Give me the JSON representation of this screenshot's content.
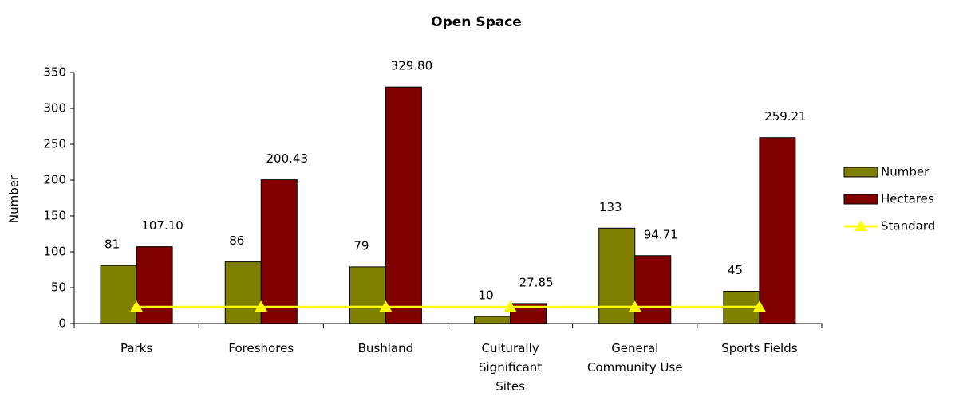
{
  "chart_data": {
    "type": "bar",
    "title": "Open Space",
    "y_label": "Number",
    "categories": [
      "Parks",
      "Foreshores",
      "Bushland",
      "Culturally Significant Sites",
      "General Community Use",
      "Sports Fields"
    ],
    "series": [
      {
        "name": "Number",
        "type": "bar",
        "color": "#808000",
        "values": [
          81,
          86,
          79,
          10,
          133,
          45
        ]
      },
      {
        "name": "Hectares",
        "type": "bar",
        "color": "#800000",
        "values": [
          107.1,
          200.43,
          329.8,
          27.85,
          94.71,
          259.21
        ],
        "value_labels": [
          "107.10",
          "200.43",
          "329.80",
          "27.85",
          "94.71",
          "259.21"
        ]
      },
      {
        "name": "Standard",
        "type": "line",
        "color": "#ffff00",
        "values": [
          23,
          23,
          23,
          23,
          23,
          23
        ]
      }
    ],
    "ylim": [
      0,
      350
    ],
    "yticks": [
      0,
      50,
      100,
      150,
      200,
      250,
      300,
      350
    ],
    "grid": false,
    "legend": "right"
  }
}
